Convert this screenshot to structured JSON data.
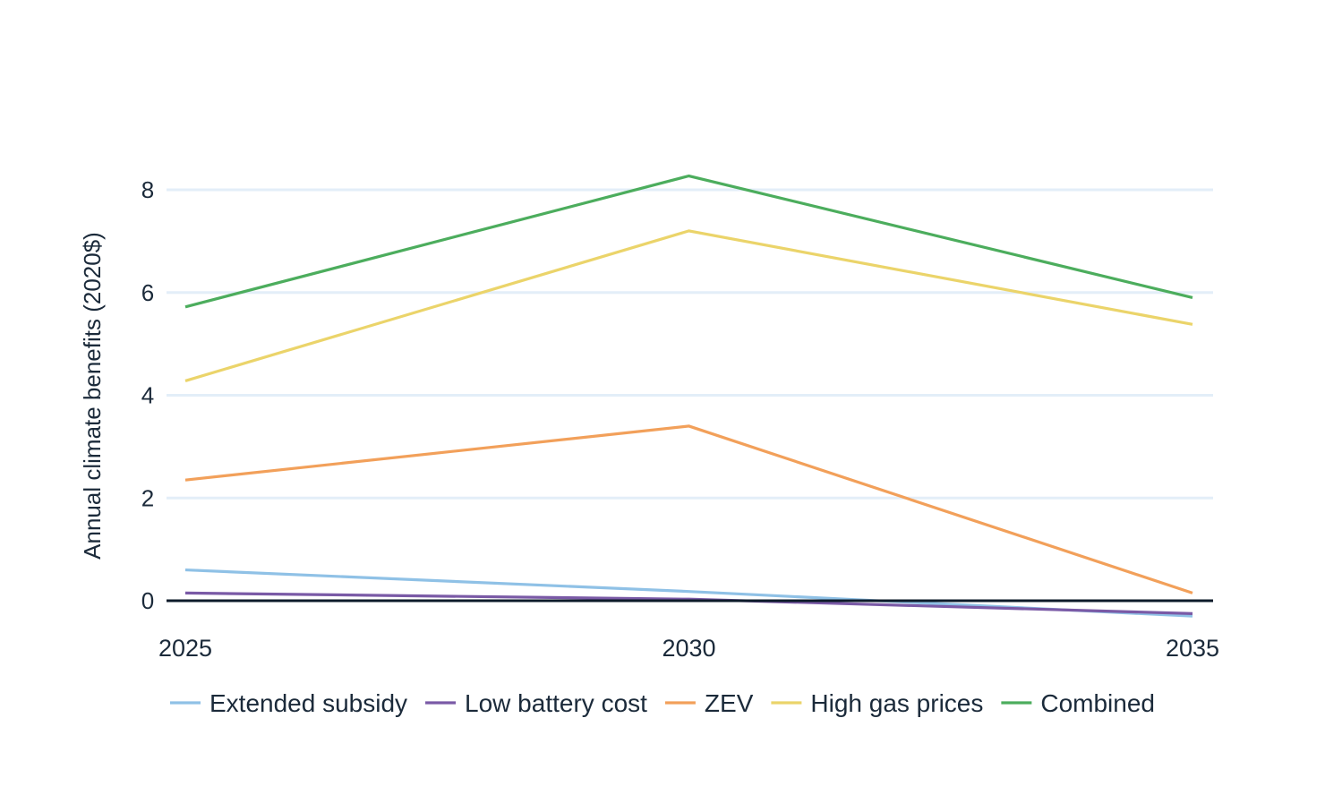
{
  "chart_data": {
    "type": "line",
    "title": "",
    "xlabel": "",
    "ylabel": "Annual climate benefits (2020$)",
    "x": [
      2025,
      2030,
      2035
    ],
    "x_tick_labels": [
      "2025",
      "2030",
      "2035"
    ],
    "ylim": [
      -0.35,
      8.5
    ],
    "y_ticks": [
      0,
      2,
      4,
      6,
      8
    ],
    "y_tick_labels": [
      "0",
      "2",
      "4",
      "6",
      "8"
    ],
    "grid": true,
    "legend_position": "bottom",
    "series": [
      {
        "name": "Extended subsidy",
        "color": "#8fc1e6",
        "values": [
          0.6,
          0.18,
          -0.3
        ]
      },
      {
        "name": "Low battery cost",
        "color": "#7a5aa6",
        "values": [
          0.15,
          0.03,
          -0.25
        ]
      },
      {
        "name": "ZEV",
        "color": "#f2a05a",
        "values": [
          2.35,
          3.4,
          0.15
        ]
      },
      {
        "name": "High gas prices",
        "color": "#ebd46a",
        "values": [
          4.28,
          7.2,
          5.38
        ]
      },
      {
        "name": "Combined",
        "color": "#4cad5d",
        "values": [
          5.72,
          8.27,
          5.9
        ]
      }
    ]
  }
}
